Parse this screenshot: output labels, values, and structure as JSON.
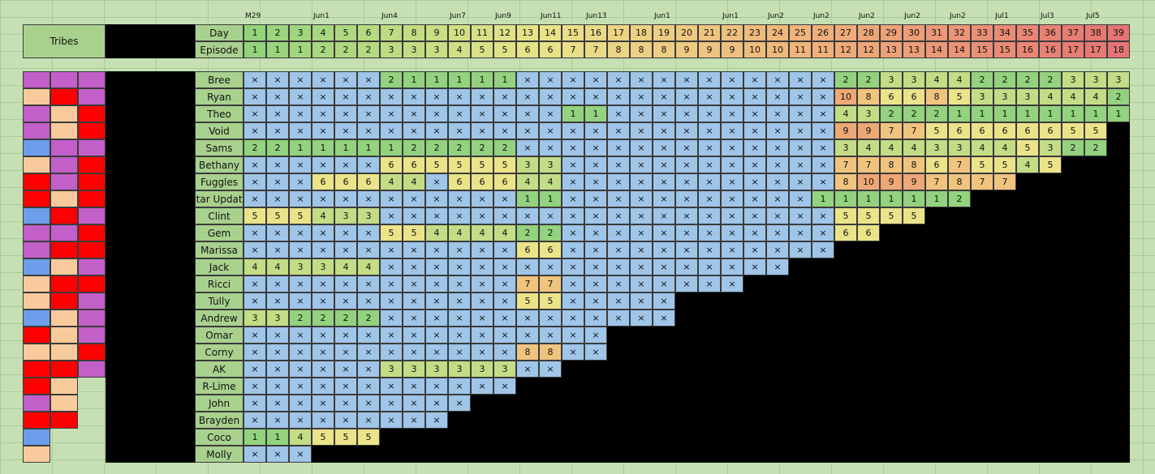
{
  "header": {
    "title": "Tribes",
    "day_label": "Day",
    "episode_label": "Episode"
  },
  "dates": [
    "M29",
    null,
    null,
    "Jun1",
    null,
    null,
    "Jun4",
    null,
    null,
    "Jun7",
    null,
    "Jun9",
    null,
    "Jun11",
    null,
    "Jun13",
    null,
    null,
    "Jun1",
    null,
    null,
    "Jun1",
    null,
    "Jun2",
    null,
    "Jun2",
    null,
    "Jun2",
    null,
    "Jun2",
    null,
    "Jun2",
    null,
    "Jul1",
    null,
    "Jul3",
    null,
    "Jul5",
    null
  ],
  "days": [
    1,
    2,
    3,
    4,
    5,
    6,
    7,
    8,
    9,
    10,
    11,
    12,
    13,
    14,
    15,
    16,
    17,
    18,
    19,
    20,
    21,
    22,
    23,
    24,
    25,
    26,
    27,
    28,
    29,
    30,
    31,
    32,
    33,
    34,
    35,
    36,
    37,
    38,
    39
  ],
  "episodes": [
    1,
    1,
    1,
    2,
    2,
    2,
    3,
    3,
    3,
    4,
    5,
    5,
    6,
    6,
    7,
    7,
    8,
    8,
    8,
    9,
    9,
    9,
    10,
    10,
    11,
    11,
    12,
    12,
    13,
    13,
    14,
    14,
    15,
    15,
    16,
    16,
    17,
    17,
    18
  ],
  "rows": [
    {
      "name": "Bree",
      "tribes": [
        "#c35fc9",
        "#c35fc9",
        "#c35fc9"
      ],
      "cells": [
        "×",
        "×",
        "×",
        "×",
        "×",
        "×",
        2,
        1,
        1,
        1,
        1,
        1,
        "×",
        "×",
        "×",
        "×",
        "×",
        "×",
        "×",
        "×",
        "×",
        "×",
        "×",
        "×",
        "×",
        "×",
        2,
        2,
        3,
        3,
        4,
        4,
        2,
        2,
        2,
        2,
        3,
        3,
        3
      ]
    },
    {
      "name": "Ryan",
      "tribes": [
        "#f9cb9c",
        "#ff0000",
        "#c35fc9"
      ],
      "cells": [
        "×",
        "×",
        "×",
        "×",
        "×",
        "×",
        "×",
        "×",
        "×",
        "×",
        "×",
        "×",
        "×",
        "×",
        "×",
        "×",
        "×",
        "×",
        "×",
        "×",
        "×",
        "×",
        "×",
        "×",
        "×",
        "×",
        10,
        8,
        6,
        6,
        8,
        5,
        3,
        3,
        3,
        4,
        4,
        4,
        2
      ]
    },
    {
      "name": "Theo",
      "tribes": [
        "#c35fc9",
        "#f9cb9c",
        "#ff0000"
      ],
      "cells": [
        "×",
        "×",
        "×",
        "×",
        "×",
        "×",
        "×",
        "×",
        "×",
        "×",
        "×",
        "×",
        "×",
        "×",
        1,
        1,
        "×",
        "×",
        "×",
        "×",
        "×",
        "×",
        "×",
        "×",
        "×",
        "×",
        4,
        3,
        2,
        2,
        2,
        1,
        1,
        1,
        1,
        1,
        1,
        1,
        1
      ]
    },
    {
      "name": "Void",
      "tribes": [
        "#c35fc9",
        "#f9cb9c",
        "#ff0000"
      ],
      "cells": [
        "×",
        "×",
        "×",
        "×",
        "×",
        "×",
        "×",
        "×",
        "×",
        "×",
        "×",
        "×",
        "×",
        "×",
        "×",
        "×",
        "×",
        "×",
        "×",
        "×",
        "×",
        "×",
        "×",
        "×",
        "×",
        "×",
        9,
        9,
        7,
        7,
        5,
        6,
        6,
        6,
        6,
        6,
        5,
        5
      ]
    },
    {
      "name": "Sams",
      "tribes": [
        "#6d9eeb",
        "#c35fc9",
        "#c35fc9"
      ],
      "cells": [
        2,
        2,
        1,
        1,
        1,
        1,
        1,
        2,
        2,
        2,
        2,
        2,
        "×",
        "×",
        "×",
        "×",
        "×",
        "×",
        "×",
        "×",
        "×",
        "×",
        "×",
        "×",
        "×",
        "×",
        3,
        4,
        4,
        4,
        3,
        3,
        4,
        4,
        5,
        3,
        2,
        2
      ]
    },
    {
      "name": "Bethany",
      "tribes": [
        "#f9cb9c",
        "#c35fc9",
        "#ff0000"
      ],
      "cells": [
        "×",
        "×",
        "×",
        "×",
        "×",
        "×",
        6,
        6,
        5,
        5,
        5,
        5,
        3,
        3,
        "×",
        "×",
        "×",
        "×",
        "×",
        "×",
        "×",
        "×",
        "×",
        "×",
        "×",
        "×",
        7,
        7,
        8,
        8,
        6,
        7,
        5,
        5,
        4,
        5
      ]
    },
    {
      "name": "Fuggles",
      "tribes": [
        "#ff0000",
        "#c35fc9",
        "#ff0000"
      ],
      "cells": [
        "×",
        "×",
        "×",
        6,
        6,
        6,
        4,
        4,
        "×",
        6,
        6,
        6,
        4,
        4,
        "×",
        "×",
        "×",
        "×",
        "×",
        "×",
        "×",
        "×",
        "×",
        "×",
        "×",
        "×",
        8,
        10,
        9,
        9,
        7,
        8,
        7,
        7
      ]
    },
    {
      "name": "Star Update",
      "tribes": [
        "#ff0000",
        "#f9cb9c",
        "#ff0000"
      ],
      "cells": [
        "×",
        "×",
        "×",
        "×",
        "×",
        "×",
        "×",
        "×",
        "×",
        "×",
        "×",
        "×",
        1,
        1,
        "×",
        "×",
        "×",
        "×",
        "×",
        "×",
        "×",
        "×",
        "×",
        "×",
        "×",
        1,
        1,
        1,
        1,
        1,
        1,
        2
      ]
    },
    {
      "name": "Clint",
      "tribes": [
        "#6d9eeb",
        "#ff0000",
        "#c35fc9"
      ],
      "cells": [
        5,
        5,
        5,
        4,
        3,
        3,
        "×",
        "×",
        "×",
        "×",
        "×",
        "×",
        "×",
        "×",
        "×",
        "×",
        "×",
        "×",
        "×",
        "×",
        "×",
        "×",
        "×",
        "×",
        "×",
        "×",
        5,
        5,
        5,
        5
      ]
    },
    {
      "name": "Gem",
      "tribes": [
        "#c35fc9",
        "#c35fc9",
        "#ff0000"
      ],
      "cells": [
        "×",
        "×",
        "×",
        "×",
        "×",
        "×",
        5,
        5,
        4,
        4,
        4,
        4,
        2,
        2,
        "×",
        "×",
        "×",
        "×",
        "×",
        "×",
        "×",
        "×",
        "×",
        "×",
        "×",
        "×",
        6,
        6
      ]
    },
    {
      "name": "Marissa",
      "tribes": [
        "#c35fc9",
        "#ff0000",
        "#ff0000"
      ],
      "cells": [
        "×",
        "×",
        "×",
        "×",
        "×",
        "×",
        "×",
        "×",
        "×",
        "×",
        "×",
        "×",
        6,
        6,
        "×",
        "×",
        "×",
        "×",
        "×",
        "×",
        "×",
        "×",
        "×",
        "×",
        "×",
        "×"
      ]
    },
    {
      "name": "Jack",
      "tribes": [
        "#6d9eeb",
        "#f9cb9c",
        "#c35fc9"
      ],
      "cells": [
        4,
        4,
        3,
        3,
        4,
        4,
        "×",
        "×",
        "×",
        "×",
        "×",
        "×",
        "×",
        "×",
        "×",
        "×",
        "×",
        "×",
        "×",
        "×",
        "×",
        "×",
        "×",
        "×"
      ]
    },
    {
      "name": "Ricci",
      "tribes": [
        "#f9cb9c",
        "#ff0000",
        "#ff0000"
      ],
      "cells": [
        "×",
        "×",
        "×",
        "×",
        "×",
        "×",
        "×",
        "×",
        "×",
        "×",
        "×",
        "×",
        7,
        7,
        "×",
        "×",
        "×",
        "×",
        "×",
        "×",
        "×",
        "×"
      ]
    },
    {
      "name": "Tully",
      "tribes": [
        "#f9cb9c",
        "#ff0000",
        "#c35fc9"
      ],
      "cells": [
        "×",
        "×",
        "×",
        "×",
        "×",
        "×",
        "×",
        "×",
        "×",
        "×",
        "×",
        "×",
        5,
        5,
        "×",
        "×",
        "×",
        "×",
        "×"
      ]
    },
    {
      "name": "Andrew",
      "tribes": [
        "#6d9eeb",
        "#f9cb9c",
        "#c35fc9"
      ],
      "cells": [
        3,
        3,
        2,
        2,
        2,
        2,
        "×",
        "×",
        "×",
        "×",
        "×",
        "×",
        "×",
        "×",
        "×",
        "×",
        "×",
        "×",
        "×"
      ]
    },
    {
      "name": "Omar",
      "tribes": [
        "#ff0000",
        "#f9cb9c",
        "#c35fc9"
      ],
      "cells": [
        "×",
        "×",
        "×",
        "×",
        "×",
        "×",
        "×",
        "×",
        "×",
        "×",
        "×",
        "×",
        "×",
        "×",
        "×",
        "×"
      ]
    },
    {
      "name": "Corny",
      "tribes": [
        "#f9cb9c",
        "#f9cb9c",
        "#ff0000"
      ],
      "cells": [
        "×",
        "×",
        "×",
        "×",
        "×",
        "×",
        "×",
        "×",
        "×",
        "×",
        "×",
        "×",
        8,
        8,
        "×",
        "×"
      ]
    },
    {
      "name": "AK",
      "tribes": [
        "#ff0000",
        "#ff0000",
        "#c35fc9"
      ],
      "cells": [
        "×",
        "×",
        "×",
        "×",
        "×",
        "×",
        3,
        3,
        3,
        3,
        3,
        3,
        "×",
        "×"
      ]
    },
    {
      "name": "R-Lime",
      "tribes": [
        "#ff0000",
        "#f9cb9c"
      ],
      "cells": [
        "×",
        "×",
        "×",
        "×",
        "×",
        "×",
        "×",
        "×",
        "×",
        "×",
        "×",
        "×"
      ]
    },
    {
      "name": "John",
      "tribes": [
        "#c35fc9",
        "#f9cb9c"
      ],
      "cells": [
        "×",
        "×",
        "×",
        "×",
        "×",
        "×",
        "×",
        "×",
        "×",
        "×"
      ]
    },
    {
      "name": "Brayden",
      "tribes": [
        "#ff0000",
        "#ff0000"
      ],
      "cells": [
        "×",
        "×",
        "×",
        "×",
        "×",
        "×",
        "×",
        "×",
        "×"
      ]
    },
    {
      "name": "Coco",
      "tribes": [
        "#6d9eeb"
      ],
      "cells": [
        1,
        1,
        4,
        5,
        5,
        5
      ]
    },
    {
      "name": "Molly",
      "tribes": [
        "#f9cb9c"
      ],
      "cells": [
        "×",
        "×",
        "×"
      ]
    }
  ]
}
